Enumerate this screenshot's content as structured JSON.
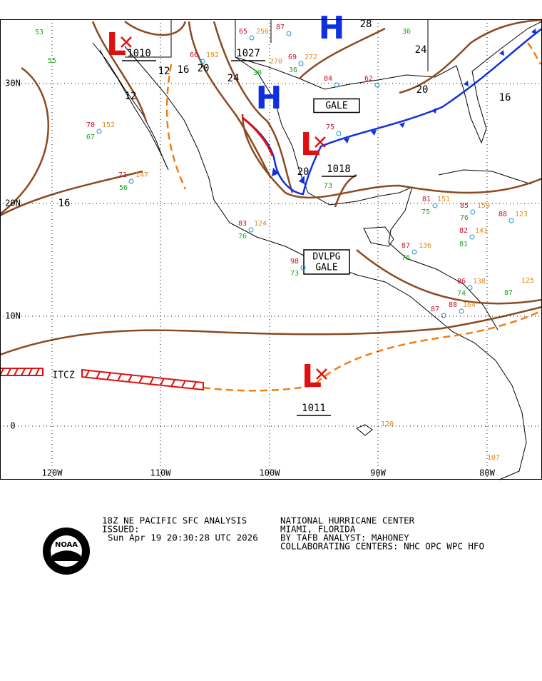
{
  "map": {
    "lat_labels": [
      "30N",
      "20N",
      "10N",
      "0"
    ],
    "lon_labels": [
      "120W",
      "110W",
      "100W",
      "90W",
      "80W"
    ],
    "highs": [
      "H",
      "H"
    ],
    "lows": [
      "L",
      "L",
      "L"
    ],
    "isobar_labels": [
      "1010",
      "12",
      "16",
      "20",
      "24",
      "1027",
      "28",
      "24",
      "20",
      "16",
      "1018",
      "20",
      "16",
      "1011",
      "12"
    ],
    "boxed_labels": [
      [
        "GALE"
      ],
      [
        "DVLPG",
        "GALE"
      ]
    ],
    "itcz": "ITCZ",
    "temp_color": "#c8102e",
    "dewpoint_color": "#18a818",
    "pressure_color": "#e08a20",
    "station_temps": [
      "70",
      "71",
      "83",
      "98",
      "87",
      "86",
      "88",
      "87",
      "81",
      "85",
      "82",
      "88",
      "62",
      "84",
      "75",
      "65",
      "66",
      "69",
      "87"
    ],
    "station_dewpoints": [
      "67",
      "56",
      "76",
      "73",
      "76",
      "74",
      "87",
      "75",
      "76",
      "81",
      "73",
      "30",
      "36",
      "36",
      "55",
      "53"
    ],
    "station_pressures": [
      "152",
      "147",
      "124",
      "136",
      "138",
      "164",
      "151",
      "159",
      "141",
      "123",
      "256",
      "192",
      "272",
      "270",
      "125",
      "120",
      "107"
    ]
  },
  "footer": {
    "title": "18Z NE PACIFIC SFC ANALYSIS",
    "issued": "ISSUED:",
    "time": "Sun Apr 19 20:30:28 UTC 2026",
    "center": "NATIONAL HURRICANE CENTER",
    "city": "MIAMI, FLORIDA",
    "analyst": "BY TAFB ANALYST: MAHONEY",
    "collab": "COLLABORATING CENTERS: NHC OPC WPC HFO",
    "logo": "NOAA"
  }
}
